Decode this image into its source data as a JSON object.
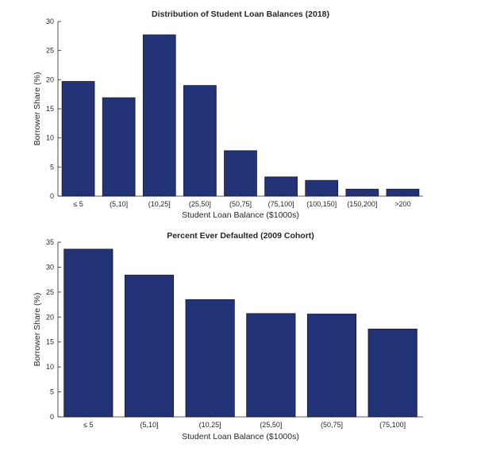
{
  "chart_data": [
    {
      "type": "bar",
      "title": "Distribution of Student Loan Balances (2018)",
      "xlabel": "Student Loan Balance ($1000s)",
      "ylabel": "Borrower Share (%)",
      "categories": [
        "≤ 5",
        "(5,10]",
        "(10,25]",
        "(25,50]",
        "(50,75]",
        "(75,100]",
        "(100,150]",
        "(150,200]",
        ">200"
      ],
      "values": [
        19.7,
        16.9,
        27.7,
        19.0,
        7.8,
        3.3,
        2.7,
        1.2,
        1.2
      ],
      "ylim": [
        0,
        30
      ],
      "yticks": [
        0,
        5,
        10,
        15,
        20,
        25,
        30
      ],
      "bar_color": "#223377",
      "grid": false,
      "legend": "none"
    },
    {
      "type": "bar",
      "title": "Percent Ever Defaulted (2009 Cohort)",
      "xlabel": "Student Loan Balance ($1000s)",
      "ylabel": "Borrower Share (%)",
      "categories": [
        "≤ 5",
        "(5,10]",
        "(10,25]",
        "(25,50]",
        "(50,75]",
        "(75,100]"
      ],
      "values": [
        33.6,
        28.4,
        23.5,
        20.7,
        20.6,
        17.6
      ],
      "ylim": [
        0,
        35
      ],
      "yticks": [
        0,
        5,
        10,
        15,
        20,
        25,
        30,
        35
      ],
      "bar_color": "#223377",
      "grid": false,
      "legend": "none"
    }
  ]
}
